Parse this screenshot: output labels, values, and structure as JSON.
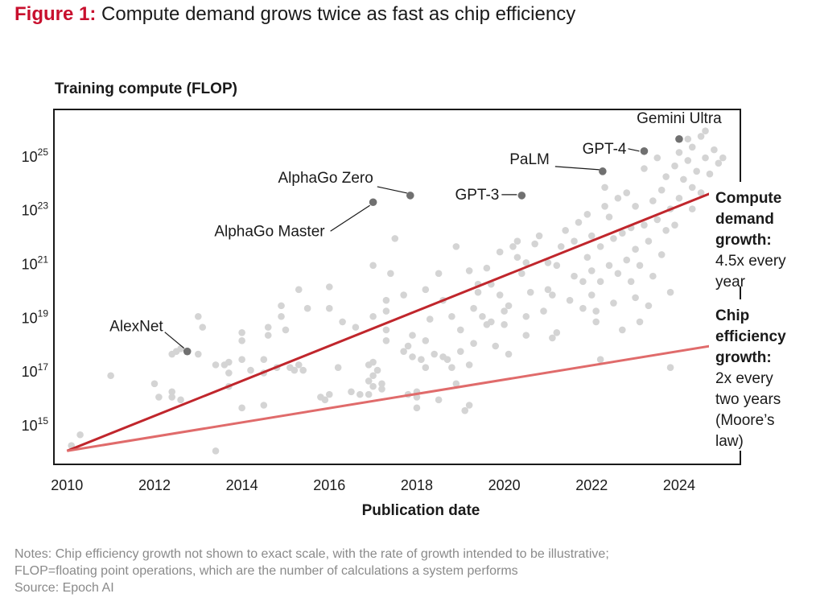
{
  "title": {
    "lead": "Figure 1:",
    "text": "Compute demand grows twice as fast as chip efficiency"
  },
  "notes": [
    "Notes: Chip efficiency growth not shown to exact scale, with the rate of growth intended to be illustrative;",
    "FLOP=floating point operations, which are the number of calculations a system performs",
    "Source: Epoch AI"
  ],
  "colors": {
    "point": "#d4d4d4",
    "highlight": "#707070",
    "demand_line": "#c0262c",
    "efficiency_line": "#e06b6b",
    "text": "#1a1a1a"
  },
  "chart_data": {
    "type": "scatter",
    "ylabel": "Training compute (FLOP)",
    "xlabel": "Publication date",
    "log_y": true,
    "xlim": [
      2009.7,
      2025.4
    ],
    "ylim_exp": [
      13.5,
      26.7
    ],
    "x_ticks": [
      "2010",
      "2012",
      "2014",
      "2016",
      "2018",
      "2020",
      "2022",
      "2024"
    ],
    "y_ticks": [
      {
        "base": "10",
        "exp": "15"
      },
      {
        "base": "10",
        "exp": "17"
      },
      {
        "base": "10",
        "exp": "19"
      },
      {
        "base": "10",
        "exp": "21"
      },
      {
        "base": "10",
        "exp": "23"
      },
      {
        "base": "10",
        "exp": "25"
      }
    ],
    "trend_lines": [
      {
        "kind": "demand",
        "from": [
          2010.0,
          14.0
        ],
        "to": [
          2024.9,
          23.7
        ],
        "label_bold": [
          "Compute",
          "demand",
          "growth:"
        ],
        "label_regular": [
          "4.5x every",
          "year"
        ]
      },
      {
        "kind": "efficiency",
        "from": [
          2010.0,
          14.0
        ],
        "to": [
          2024.9,
          17.95
        ],
        "label_bold": [
          "Chip",
          "efficiency",
          "growth:"
        ],
        "label_regular": [
          "2x every",
          "two years",
          "(Moore’s",
          "law)"
        ]
      }
    ],
    "highlighted": [
      {
        "name": "AlexNet",
        "x": 2012.75,
        "y": 17.7
      },
      {
        "name": "AlphaGo Master",
        "x": 2017.0,
        "y": 23.25
      },
      {
        "name": "AlphaGo Zero",
        "x": 2017.85,
        "y": 23.5
      },
      {
        "name": "GPT-3",
        "x": 2020.4,
        "y": 23.5
      },
      {
        "name": "PaLM",
        "x": 2022.25,
        "y": 24.4
      },
      {
        "name": "GPT-4",
        "x": 2023.2,
        "y": 25.15
      },
      {
        "name": "Gemini Ultra",
        "x": 2024.0,
        "y": 25.6
      }
    ],
    "points": [
      [
        2010.1,
        14.2
      ],
      [
        2010.3,
        14.6
      ],
      [
        2011.0,
        16.8
      ],
      [
        2012.0,
        16.5
      ],
      [
        2012.1,
        16.0
      ],
      [
        2012.4,
        16.0
      ],
      [
        2012.4,
        16.2
      ],
      [
        2012.4,
        17.6
      ],
      [
        2012.5,
        17.7
      ],
      [
        2012.6,
        17.8
      ],
      [
        2013.0,
        17.6
      ],
      [
        2013.1,
        18.6
      ],
      [
        2013.4,
        14.0
      ],
      [
        2013.4,
        17.2
      ],
      [
        2013.6,
        17.2
      ],
      [
        2013.7,
        16.4
      ],
      [
        2013.7,
        16.9
      ],
      [
        2013.7,
        17.3
      ],
      [
        2014.0,
        15.6
      ],
      [
        2014.0,
        17.4
      ],
      [
        2014.0,
        18.1
      ],
      [
        2014.0,
        18.4
      ],
      [
        2014.2,
        17.0
      ],
      [
        2014.5,
        15.7
      ],
      [
        2014.5,
        17.4
      ],
      [
        2014.5,
        16.9
      ],
      [
        2014.6,
        18.3
      ],
      [
        2014.6,
        18.6
      ],
      [
        2014.8,
        17.1
      ],
      [
        2014.9,
        19.0
      ],
      [
        2014.9,
        19.4
      ],
      [
        2015.0,
        18.5
      ],
      [
        2015.1,
        17.1
      ],
      [
        2015.3,
        20.0
      ],
      [
        2015.3,
        17.2
      ],
      [
        2015.4,
        17.0
      ],
      [
        2015.5,
        19.3
      ],
      [
        2015.8,
        16.0
      ],
      [
        2015.9,
        15.9
      ],
      [
        2016.0,
        19.3
      ],
      [
        2016.0,
        20.1
      ],
      [
        2016.0,
        16.1
      ],
      [
        2016.2,
        17.1
      ],
      [
        2016.3,
        18.8
      ],
      [
        2016.5,
        16.2
      ],
      [
        2016.6,
        18.6
      ],
      [
        2016.7,
        16.1
      ],
      [
        2016.9,
        16.1
      ],
      [
        2016.9,
        16.6
      ],
      [
        2016.9,
        17.2
      ],
      [
        2017.0,
        16.4
      ],
      [
        2017.0,
        16.8
      ],
      [
        2017.0,
        17.3
      ],
      [
        2017.0,
        19.0
      ],
      [
        2017.0,
        20.9
      ],
      [
        2017.1,
        17.0
      ],
      [
        2017.2,
        16.5
      ],
      [
        2017.2,
        16.3
      ],
      [
        2017.3,
        19.2
      ],
      [
        2017.3,
        19.6
      ],
      [
        2017.3,
        18.5
      ],
      [
        2017.4,
        20.6
      ],
      [
        2017.5,
        21.9
      ],
      [
        2017.7,
        19.8
      ],
      [
        2017.7,
        17.7
      ],
      [
        2017.8,
        16.1
      ],
      [
        2017.8,
        17.9
      ],
      [
        2017.9,
        17.5
      ],
      [
        2017.9,
        18.3
      ],
      [
        2018.0,
        15.6
      ],
      [
        2018.0,
        16.0
      ],
      [
        2018.0,
        16.2
      ],
      [
        2018.1,
        17.4
      ],
      [
        2018.2,
        17.1
      ],
      [
        2018.2,
        20.0
      ],
      [
        2018.3,
        18.9
      ],
      [
        2018.4,
        17.6
      ],
      [
        2018.5,
        15.9
      ],
      [
        2018.5,
        20.6
      ],
      [
        2018.6,
        17.5
      ],
      [
        2018.6,
        19.6
      ],
      [
        2018.7,
        17.4
      ],
      [
        2018.8,
        19.0
      ],
      [
        2018.8,
        17.1
      ],
      [
        2018.9,
        21.6
      ],
      [
        2018.9,
        16.5
      ],
      [
        2019.0,
        17.7
      ],
      [
        2019.0,
        18.5
      ],
      [
        2019.1,
        15.5
      ],
      [
        2019.2,
        15.7
      ],
      [
        2019.2,
        20.7
      ],
      [
        2019.3,
        19.3
      ],
      [
        2019.3,
        18.0
      ],
      [
        2019.4,
        19.9
      ],
      [
        2019.4,
        20.2
      ],
      [
        2019.5,
        19.0
      ],
      [
        2019.6,
        20.8
      ],
      [
        2019.6,
        18.7
      ],
      [
        2019.7,
        18.8
      ],
      [
        2019.7,
        20.2
      ],
      [
        2019.8,
        17.9
      ],
      [
        2019.9,
        19.8
      ],
      [
        2019.9,
        21.4
      ],
      [
        2020.0,
        18.7
      ],
      [
        2020.0,
        19.2
      ],
      [
        2020.1,
        17.6
      ],
      [
        2020.2,
        21.6
      ],
      [
        2020.3,
        21.2
      ],
      [
        2020.3,
        21.8
      ],
      [
        2020.4,
        20.6
      ],
      [
        2020.5,
        18.3
      ],
      [
        2020.5,
        19.0
      ],
      [
        2020.5,
        21.0
      ],
      [
        2020.6,
        19.9
      ],
      [
        2020.7,
        21.7
      ],
      [
        2020.8,
        22.0
      ],
      [
        2020.9,
        19.2
      ],
      [
        2021.0,
        20.0
      ],
      [
        2021.0,
        21.0
      ],
      [
        2021.1,
        18.2
      ],
      [
        2021.1,
        19.8
      ],
      [
        2021.2,
        20.9
      ],
      [
        2021.3,
        21.6
      ],
      [
        2021.4,
        22.2
      ],
      [
        2021.5,
        19.6
      ],
      [
        2021.6,
        20.5
      ],
      [
        2021.6,
        21.8
      ],
      [
        2021.7,
        22.5
      ],
      [
        2021.8,
        20.3
      ],
      [
        2021.8,
        19.3
      ],
      [
        2021.9,
        22.8
      ],
      [
        2021.9,
        21.2
      ],
      [
        2022.0,
        19.8
      ],
      [
        2022.0,
        20.7
      ],
      [
        2022.0,
        22.0
      ],
      [
        2022.1,
        18.8
      ],
      [
        2022.1,
        19.2
      ],
      [
        2022.2,
        20.3
      ],
      [
        2022.2,
        21.6
      ],
      [
        2022.3,
        23.1
      ],
      [
        2022.3,
        23.8
      ],
      [
        2022.4,
        20.9
      ],
      [
        2022.4,
        22.7
      ],
      [
        2022.5,
        19.5
      ],
      [
        2022.5,
        21.9
      ],
      [
        2022.6,
        23.4
      ],
      [
        2022.6,
        20.6
      ],
      [
        2022.7,
        18.5
      ],
      [
        2022.7,
        22.1
      ],
      [
        2022.8,
        21.1
      ],
      [
        2022.8,
        23.6
      ],
      [
        2022.9,
        20.3
      ],
      [
        2022.9,
        22.3
      ],
      [
        2023.0,
        19.7
      ],
      [
        2023.0,
        21.5
      ],
      [
        2023.0,
        23.1
      ],
      [
        2023.1,
        18.8
      ],
      [
        2023.1,
        20.9
      ],
      [
        2023.2,
        22.4
      ],
      [
        2023.2,
        24.5
      ],
      [
        2023.3,
        21.8
      ],
      [
        2023.3,
        19.4
      ],
      [
        2023.4,
        23.3
      ],
      [
        2023.4,
        20.5
      ],
      [
        2023.5,
        22.6
      ],
      [
        2023.5,
        24.9
      ],
      [
        2023.6,
        21.3
      ],
      [
        2023.6,
        23.7
      ],
      [
        2023.7,
        22.2
      ],
      [
        2023.7,
        24.2
      ],
      [
        2023.8,
        19.9
      ],
      [
        2023.8,
        23.0
      ],
      [
        2023.9,
        24.6
      ],
      [
        2023.9,
        22.4
      ],
      [
        2024.0,
        25.1
      ],
      [
        2024.0,
        23.4
      ],
      [
        2024.1,
        24.1
      ],
      [
        2024.2,
        25.6
      ],
      [
        2024.2,
        24.8
      ],
      [
        2024.3,
        23.8
      ],
      [
        2024.3,
        25.3
      ],
      [
        2024.4,
        24.4
      ],
      [
        2024.5,
        25.7
      ],
      [
        2024.5,
        23.6
      ],
      [
        2024.6,
        24.9
      ],
      [
        2024.6,
        25.9
      ],
      [
        2024.7,
        24.3
      ],
      [
        2024.8,
        25.2
      ],
      [
        2024.8,
        21.7
      ],
      [
        2024.9,
        24.7
      ],
      [
        2025.0,
        24.9
      ],
      [
        2013.0,
        19.0
      ],
      [
        2015.2,
        17.0
      ],
      [
        2017.3,
        18.1
      ],
      [
        2019.2,
        17.2
      ],
      [
        2020.1,
        19.4
      ],
      [
        2021.2,
        18.4
      ],
      [
        2023.8,
        17.1
      ],
      [
        2024.3,
        23.0
      ],
      [
        2022.2,
        17.4
      ],
      [
        2012.6,
        15.9
      ],
      [
        2018.2,
        18.1
      ]
    ]
  }
}
